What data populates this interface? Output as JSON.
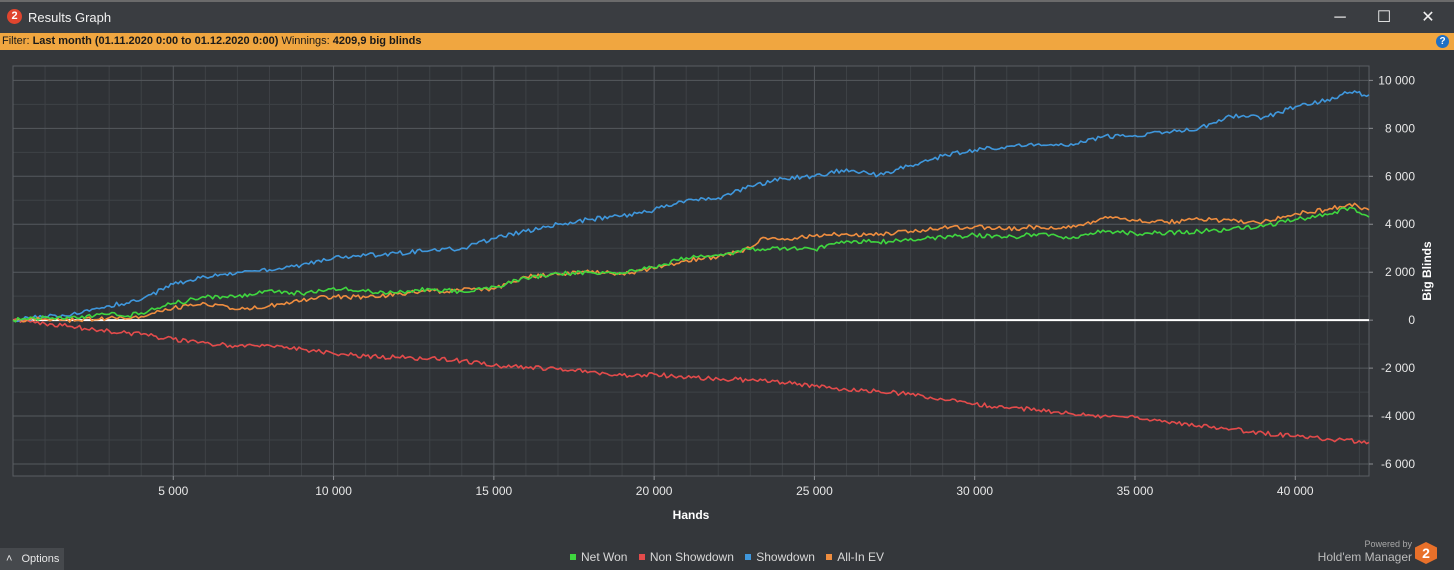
{
  "window": {
    "title": "Results Graph",
    "app_icon_text": "2",
    "minimize_glyph": "─",
    "maximize_glyph": "☐",
    "close_glyph": "✕"
  },
  "filter": {
    "label": "Filter:",
    "value": "Last month (01.11.2020 0:00 to 01.12.2020 0:00)",
    "winnings_label": "Winnings:",
    "winnings_value": "4209,9 big blinds",
    "help_icon_text": "?"
  },
  "footer": {
    "options_label": "Options",
    "options_arrow": "˄",
    "powered_by": "Powered by",
    "brand": "Hold'em Manager",
    "brand_logo_text": "2"
  },
  "colors": {
    "net_won": "#3fd63f",
    "non_showdown": "#e34b4b",
    "showdown": "#3f97dc",
    "all_in_ev": "#ef8d3f",
    "zero_line": "#ffffff",
    "filter_bar": "#f0a640"
  },
  "chart_data": {
    "type": "line",
    "xlabel": "Hands",
    "ylabel": "Big Blinds",
    "xlim": [
      0,
      42300
    ],
    "ylim": [
      -6500,
      10600
    ],
    "grid": true,
    "legend_position": "bottom-center",
    "x_ticks": [
      5000,
      10000,
      15000,
      20000,
      25000,
      30000,
      35000,
      40000
    ],
    "x_tick_labels": [
      "5 000",
      "10 000",
      "15 000",
      "20 000",
      "25 000",
      "30 000",
      "35 000",
      "40 000"
    ],
    "y_ticks": [
      10000,
      8000,
      6000,
      4000,
      2000,
      0,
      -2000,
      -4000,
      -6000
    ],
    "y_tick_labels": [
      "10 000",
      "8 000",
      "6 000",
      "4 000",
      "2 000",
      "0",
      "-2 000",
      "-4 000",
      "-6 000"
    ],
    "series": [
      {
        "name": "Net Won",
        "x": [
          0,
          1000,
          2000,
          3000,
          3500,
          4000,
          4500,
          5000,
          6000,
          7000,
          8000,
          9000,
          10000,
          11000,
          12000,
          13000,
          14000,
          15000,
          16000,
          17000,
          18000,
          19000,
          20000,
          21000,
          22000,
          23000,
          24000,
          25000,
          26000,
          27000,
          28000,
          29000,
          30000,
          31000,
          32000,
          33000,
          34000,
          35000,
          36000,
          37000,
          38000,
          39000,
          40000,
          41000,
          41700,
          42300
        ],
        "y": [
          0,
          120,
          80,
          250,
          150,
          300,
          500,
          700,
          950,
          1000,
          1250,
          1100,
          1350,
          1200,
          1150,
          1300,
          1200,
          1400,
          1750,
          1950,
          2000,
          1950,
          2200,
          2600,
          2700,
          2950,
          3000,
          2950,
          3300,
          3250,
          3400,
          3450,
          3550,
          3450,
          3600,
          3400,
          3750,
          3600,
          3650,
          3700,
          3800,
          3900,
          4200,
          4400,
          4700,
          4300
        ]
      },
      {
        "name": "Non Showdown",
        "x": [
          0,
          1000,
          2000,
          3000,
          4000,
          5000,
          6000,
          7000,
          8000,
          9000,
          10000,
          11000,
          12000,
          13000,
          14000,
          15000,
          16000,
          17000,
          18000,
          19000,
          20000,
          21000,
          22000,
          23000,
          24000,
          25000,
          26000,
          27000,
          28000,
          29000,
          30000,
          31000,
          32000,
          33000,
          34000,
          35000,
          36000,
          37000,
          38000,
          39000,
          40000,
          41000,
          42300
        ],
        "y": [
          0,
          -150,
          -300,
          -450,
          -600,
          -800,
          -950,
          -1100,
          -1050,
          -1200,
          -1400,
          -1500,
          -1550,
          -1600,
          -1700,
          -1900,
          -1950,
          -2050,
          -2150,
          -2300,
          -2250,
          -2400,
          -2450,
          -2500,
          -2600,
          -2750,
          -2900,
          -2950,
          -3100,
          -3300,
          -3500,
          -3650,
          -3750,
          -3900,
          -4000,
          -4050,
          -4250,
          -4400,
          -4550,
          -4700,
          -4850,
          -4950,
          -5100
        ]
      },
      {
        "name": "Showdown",
        "x": [
          0,
          1000,
          2000,
          3000,
          4000,
          5000,
          6000,
          7000,
          8000,
          9000,
          10000,
          11000,
          12000,
          13000,
          14000,
          15000,
          16000,
          17000,
          18000,
          19000,
          20000,
          21000,
          22000,
          23000,
          24000,
          25000,
          26000,
          27000,
          28000,
          29000,
          30000,
          31000,
          32000,
          33000,
          34000,
          35000,
          36000,
          37000,
          38000,
          39000,
          40000,
          41000,
          41700,
          42300
        ],
        "y": [
          0,
          150,
          250,
          600,
          850,
          1500,
          1800,
          2000,
          2100,
          2300,
          2600,
          2700,
          2800,
          2900,
          3000,
          3400,
          3700,
          4000,
          4200,
          4350,
          4600,
          5000,
          5100,
          5600,
          5900,
          6000,
          6300,
          6050,
          6450,
          6850,
          7100,
          7250,
          7350,
          7350,
          7650,
          7700,
          7850,
          8000,
          8500,
          8450,
          8900,
          9200,
          9500,
          9400
        ]
      },
      {
        "name": "All-In EV",
        "x": [
          0,
          1000,
          2000,
          3000,
          3500,
          4000,
          4500,
          5000,
          6000,
          7000,
          8000,
          9000,
          10000,
          11000,
          12000,
          13000,
          14000,
          15000,
          16000,
          17000,
          18000,
          19000,
          20000,
          21000,
          22000,
          23000,
          23400,
          24000,
          25000,
          26000,
          27000,
          28000,
          29000,
          30000,
          31000,
          32000,
          33000,
          34000,
          35000,
          36000,
          37000,
          38000,
          39000,
          40000,
          41000,
          41700,
          42300
        ],
        "y": [
          0,
          50,
          0,
          100,
          50,
          150,
          400,
          500,
          700,
          450,
          600,
          800,
          1000,
          950,
          1100,
          1200,
          1250,
          1300,
          1800,
          1900,
          2000,
          1950,
          2150,
          2500,
          2650,
          3000,
          3450,
          3400,
          3500,
          3600,
          3550,
          3700,
          3850,
          3900,
          3800,
          3900,
          3850,
          4250,
          4150,
          4100,
          4200,
          4150,
          4100,
          4450,
          4600,
          4850,
          4600
        ]
      }
    ]
  }
}
